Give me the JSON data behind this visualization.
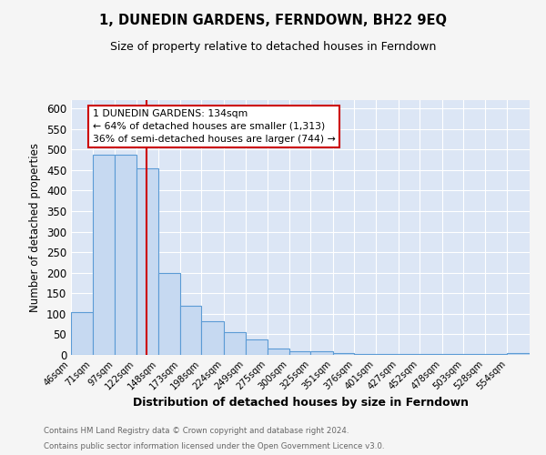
{
  "title": "1, DUNEDIN GARDENS, FERNDOWN, BH22 9EQ",
  "subtitle": "Size of property relative to detached houses in Ferndown",
  "xlabel": "Distribution of detached houses by size in Ferndown",
  "ylabel": "Number of detached properties",
  "bar_color": "#c6d9f1",
  "bar_edge_color": "#5b9bd5",
  "background_color": "#dce6f5",
  "grid_color": "#ffffff",
  "fig_bg_color": "#f5f5f5",
  "bin_edges": [
    46,
    71,
    97,
    122,
    148,
    173,
    198,
    224,
    249,
    275,
    300,
    325,
    351,
    376,
    401,
    427,
    452,
    478,
    503,
    528,
    554,
    580
  ],
  "bin_labels": [
    "46sqm",
    "71sqm",
    "97sqm",
    "122sqm",
    "148sqm",
    "173sqm",
    "198sqm",
    "224sqm",
    "249sqm",
    "275sqm",
    "300sqm",
    "325sqm",
    "351sqm",
    "376sqm",
    "401sqm",
    "427sqm",
    "452sqm",
    "478sqm",
    "503sqm",
    "528sqm",
    "554sqm"
  ],
  "counts": [
    105,
    487,
    487,
    453,
    200,
    120,
    83,
    55,
    38,
    16,
    9,
    9,
    5,
    2,
    2,
    2,
    2,
    2,
    2,
    2,
    5
  ],
  "property_size": 134,
  "vline_color": "#cc0000",
  "ylim": [
    0,
    620
  ],
  "yticks": [
    0,
    50,
    100,
    150,
    200,
    250,
    300,
    350,
    400,
    450,
    500,
    550,
    600
  ],
  "annotation_title": "1 DUNEDIN GARDENS: 134sqm",
  "annotation_line1": "← 64% of detached houses are smaller (1,313)",
  "annotation_line2": "36% of semi-detached houses are larger (744) →",
  "annotation_box_color": "#ffffff",
  "annotation_border_color": "#cc0000",
  "footer_line1": "Contains HM Land Registry data © Crown copyright and database right 2024.",
  "footer_line2": "Contains public sector information licensed under the Open Government Licence v3.0."
}
